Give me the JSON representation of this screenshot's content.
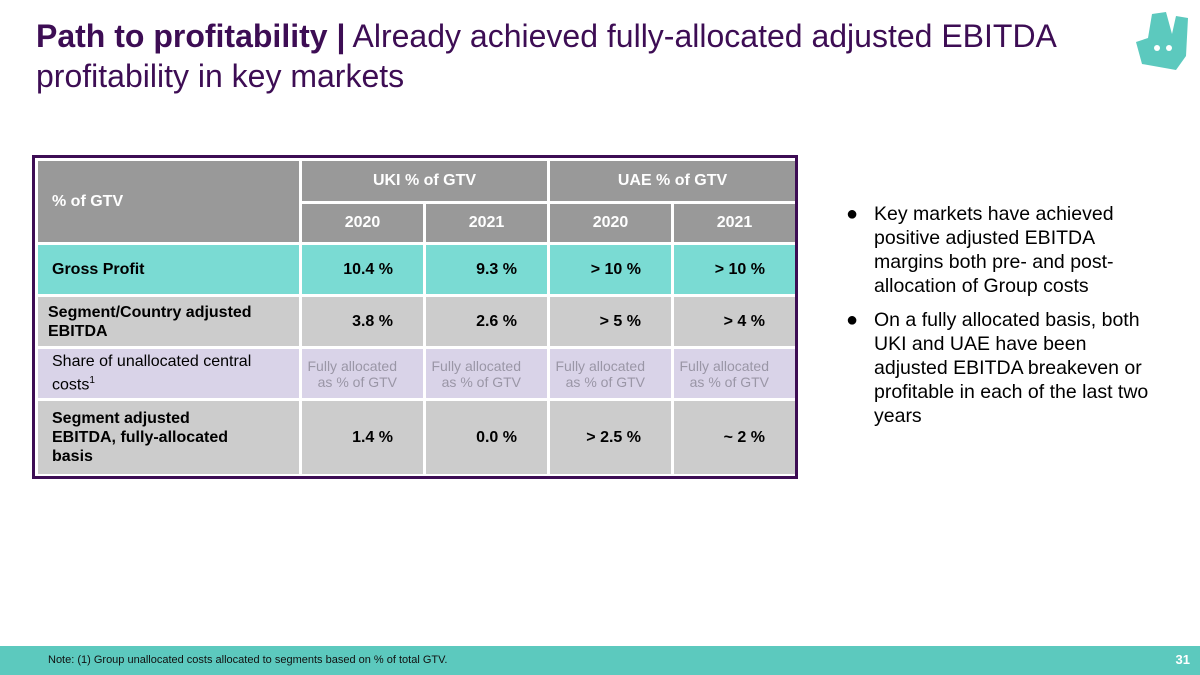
{
  "header": {
    "title_bold": "Path to profitability |",
    "title_rest": "Already achieved fully-allocated adjusted EBITDA profitability in key markets"
  },
  "colors": {
    "brand_purple": "#3d0d54",
    "teal": "#5cc9be",
    "row_teal": "#7adbd3",
    "header_gray": "#999999"
  },
  "logo": {
    "icon": "deliveroo-kangaroo-icon"
  },
  "table": {
    "corner_label": "% of GTV",
    "groups": [
      "UKI % of GTV",
      "UAE % of GTV"
    ],
    "years": [
      "2020",
      "2021",
      "2020",
      "2021"
    ],
    "rows": [
      {
        "label": "Gross Profit",
        "values": [
          "10.4 %",
          "9.3 %",
          "> 10 %",
          "> 10 %"
        ]
      },
      {
        "label": "Segment/Country adjusted EBITDA",
        "values": [
          "3.8 %",
          "2.6 %",
          "> 5 %",
          "> 4 %"
        ]
      },
      {
        "label": "Share of unallocated central costs",
        "label_sup": "1",
        "values_line1": [
          "Fully allocated",
          "Fully allocated",
          "Fully allocated",
          "Fully allocated"
        ],
        "values_line2": [
          "as % of GTV",
          "as % of GTV",
          "as % of GTV",
          "as % of GTV"
        ]
      },
      {
        "label": "Segment adjusted EBITDA, fully-allocated basis",
        "values": [
          "1.4 %",
          "0.0 %",
          "> 2.5 %",
          "~ 2 %"
        ]
      }
    ]
  },
  "bullets": [
    "Key markets have achieved positive adjusted EBITDA margins both pre- and post-allocation of Group costs",
    "On a fully allocated basis, both UKI and UAE have been adjusted EBITDA breakeven or profitable in each of the last two years"
  ],
  "footer": {
    "note": "Note: (1) Group unallocated costs allocated to segments based on % of total GTV.",
    "page_number": "31"
  }
}
